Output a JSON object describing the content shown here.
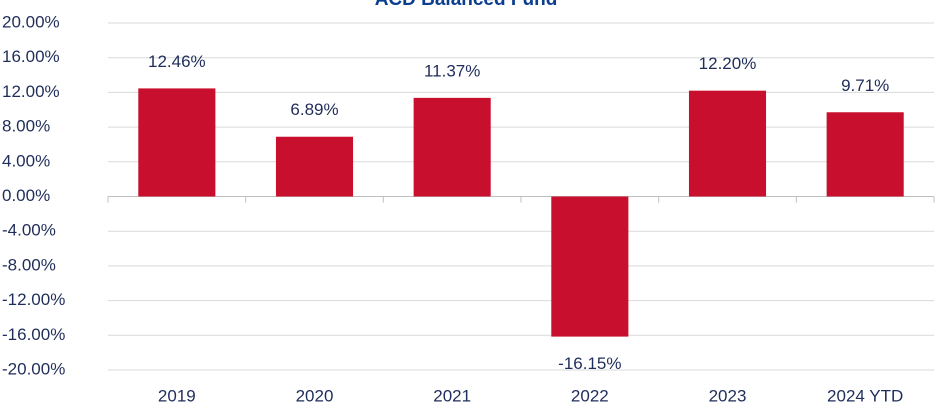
{
  "chart_data": {
    "type": "bar",
    "title": "ACD Balanced Fund",
    "categories": [
      "2019",
      "2020",
      "2021",
      "2022",
      "2023",
      "2024 YTD"
    ],
    "values": [
      12.46,
      6.89,
      11.37,
      -16.15,
      12.2,
      9.71
    ],
    "value_labels": [
      "12.46%",
      "6.89%",
      "11.37%",
      "-16.15%",
      "12.20%",
      "9.71%"
    ],
    "color": "#c8102e",
    "ylim": [
      -20,
      20
    ],
    "yticks": [
      {
        "value": -20,
        "label": "-20.00%"
      },
      {
        "value": -16,
        "label": "-16.00%"
      },
      {
        "value": -12,
        "label": "-12.00%"
      },
      {
        "value": -8,
        "label": "-8.00%"
      },
      {
        "value": -4,
        "label": "-4.00%"
      },
      {
        "value": 0,
        "label": "0.00%"
      },
      {
        "value": 4,
        "label": "4.00%"
      },
      {
        "value": 8,
        "label": "8.00%"
      },
      {
        "value": 12,
        "label": "12.00%"
      },
      {
        "value": 16,
        "label": "16.00%"
      },
      {
        "value": 20,
        "label": "20.00%"
      }
    ],
    "grid": true
  }
}
